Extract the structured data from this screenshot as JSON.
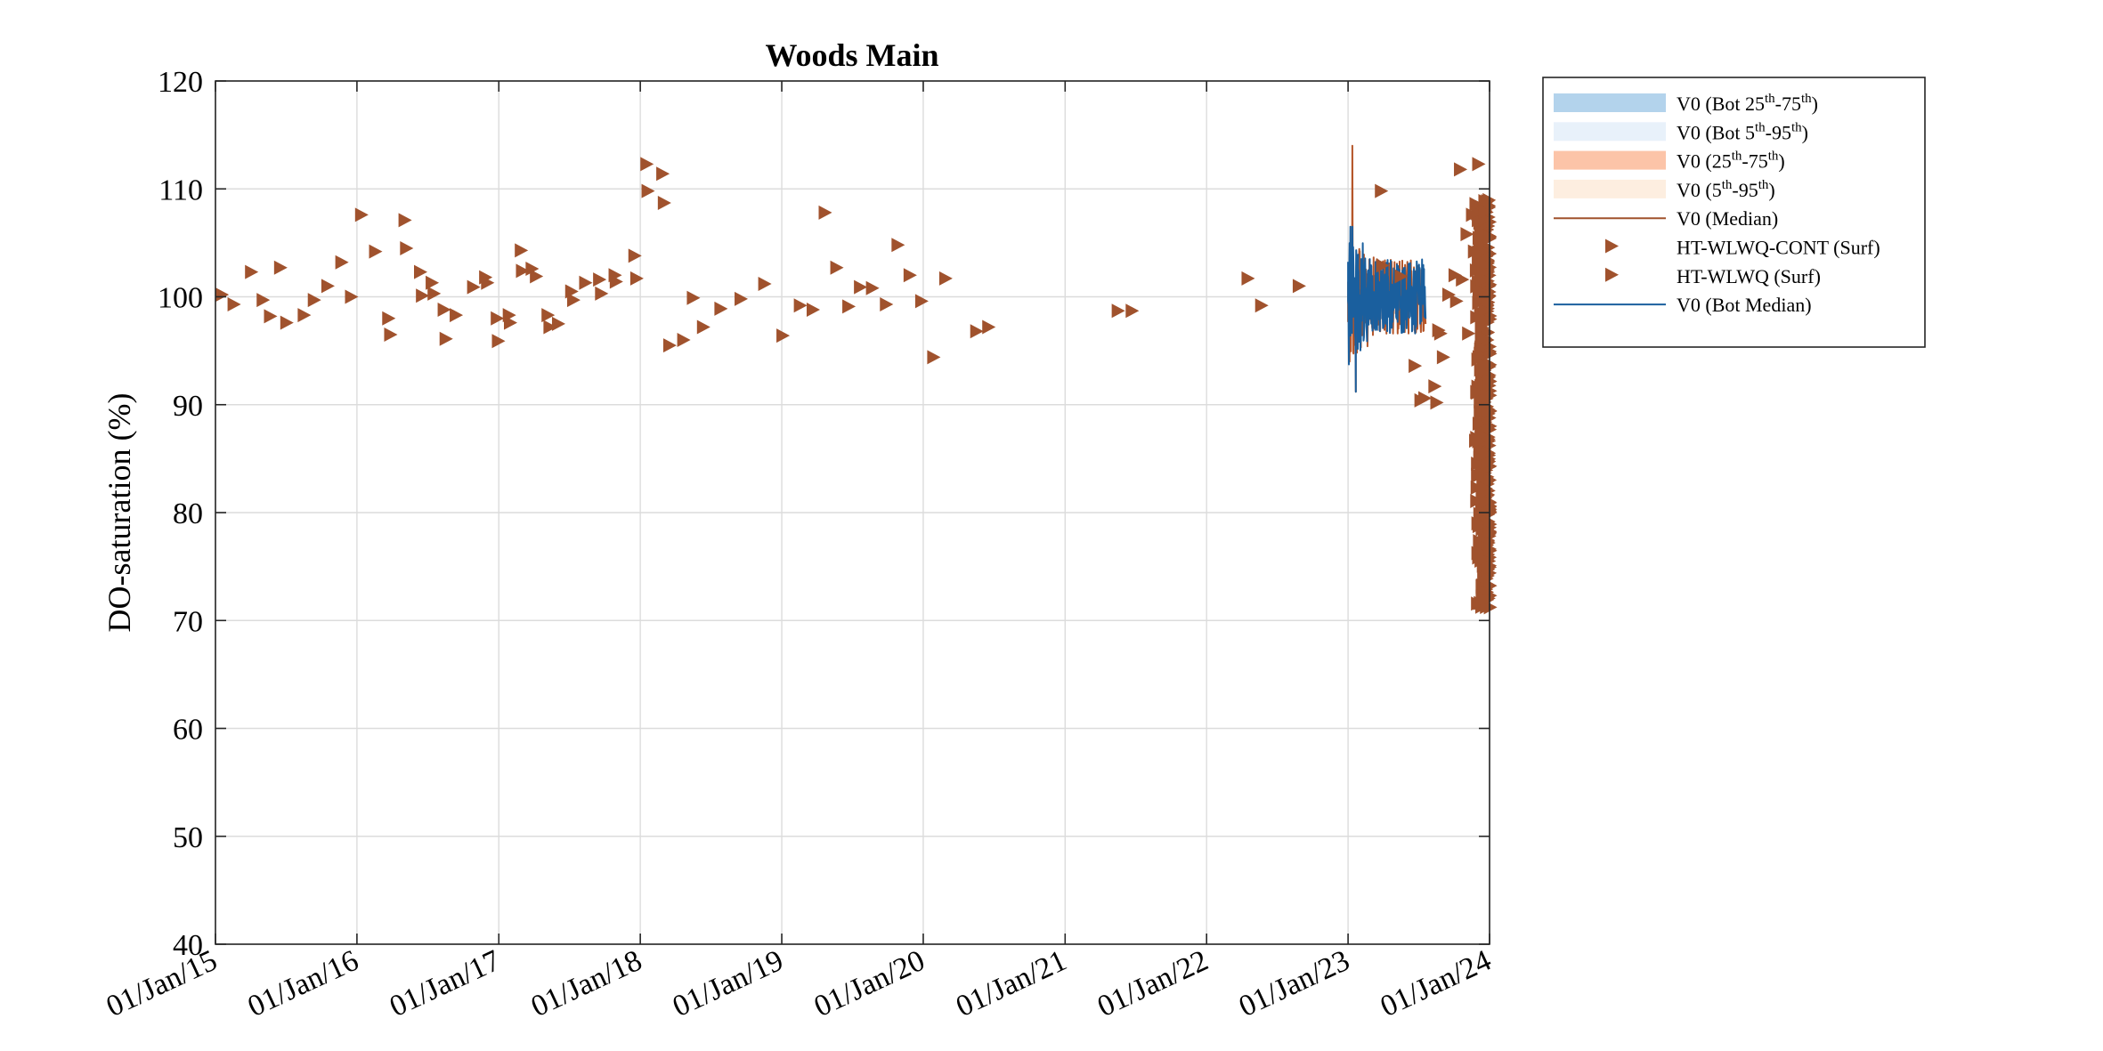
{
  "chart_data": {
    "type": "scatter",
    "title": "Woods Main",
    "ylabel": "DO-saturation (%)",
    "xlabel": "",
    "ylim": [
      40,
      120
    ],
    "yticks": [
      40,
      50,
      60,
      70,
      80,
      90,
      100,
      110,
      120
    ],
    "xlim": [
      "2015-01-01",
      "2024-01-01"
    ],
    "xticks": [
      {
        "date": "2015-01-01",
        "label": "01/Jan/15"
      },
      {
        "date": "2016-01-01",
        "label": "01/Jan/16"
      },
      {
        "date": "2017-01-01",
        "label": "01/Jan/17"
      },
      {
        "date": "2018-01-01",
        "label": "01/Jan/18"
      },
      {
        "date": "2019-01-01",
        "label": "01/Jan/19"
      },
      {
        "date": "2020-01-01",
        "label": "01/Jan/20"
      },
      {
        "date": "2021-01-01",
        "label": "01/Jan/21"
      },
      {
        "date": "2022-01-01",
        "label": "01/Jan/22"
      },
      {
        "date": "2023-01-01",
        "label": "01/Jan/23"
      },
      {
        "date": "2024-01-01",
        "label": "01/Jan/24"
      }
    ],
    "grid": true,
    "legend_position": "outside-right",
    "legend": [
      {
        "key": "bot_iqr",
        "kind": "patch",
        "color": "#b3d3ec",
        "base": "V0 (Bot 25",
        "sup1": "th",
        "mid": "-75",
        "sup2": "th",
        "tail": ")"
      },
      {
        "key": "bot_5_95",
        "kind": "patch",
        "color": "#e8f1fa",
        "base": "V0 (Bot 5",
        "sup1": "th",
        "mid": "-95",
        "sup2": "th",
        "tail": ")"
      },
      {
        "key": "iqr",
        "kind": "patch",
        "color": "#fcc4a8",
        "base": "V0 (25",
        "sup1": "th",
        "mid": "-75",
        "sup2": "th",
        "tail": ")"
      },
      {
        "key": "p5_95",
        "kind": "patch",
        "color": "#fdeee0",
        "base": "V0 (5",
        "sup1": "th",
        "mid": "-95",
        "sup2": "th",
        "tail": ")"
      },
      {
        "key": "median",
        "kind": "line",
        "color": "#a0522d",
        "base": "V0 (Median)"
      },
      {
        "key": "cont",
        "kind": "marker",
        "color": "#a0522d",
        "base": "HT-WLWQ-CONT (Surf)"
      },
      {
        "key": "grab",
        "kind": "marker",
        "color": "#a0522d",
        "base": "HT-WLWQ (Surf)"
      },
      {
        "key": "bot_median",
        "kind": "line",
        "color": "#1a5f9e",
        "base": "V0 (Bot Median)"
      }
    ],
    "colors": {
      "marker": "#a0522d",
      "surface_line": "#b5562a",
      "bottom_line": "#1a5f9e"
    },
    "series": [
      {
        "name": "HT-WLWQ (Surf)",
        "marker": "triangle-right",
        "points": [
          [
            "2015-01-15",
            100.2
          ],
          [
            "2015-02-15",
            99.3
          ],
          [
            "2015-04-01",
            102.3
          ],
          [
            "2015-05-01",
            99.7
          ],
          [
            "2015-05-20",
            98.2
          ],
          [
            "2015-06-15",
            102.7
          ],
          [
            "2015-07-01",
            97.6
          ],
          [
            "2015-08-15",
            98.3
          ],
          [
            "2015-09-10",
            99.7
          ],
          [
            "2015-10-15",
            101.0
          ],
          [
            "2015-11-20",
            103.2
          ],
          [
            "2015-12-15",
            100.0
          ],
          [
            "2016-01-10",
            107.6
          ],
          [
            "2016-02-15",
            104.2
          ],
          [
            "2016-03-20",
            98.0
          ],
          [
            "2016-03-25",
            96.5
          ],
          [
            "2016-05-01",
            107.1
          ],
          [
            "2016-05-05",
            104.5
          ],
          [
            "2016-06-10",
            102.3
          ],
          [
            "2016-06-15",
            100.1
          ],
          [
            "2016-07-10",
            101.3
          ],
          [
            "2016-07-15",
            100.3
          ],
          [
            "2016-08-10",
            98.8
          ],
          [
            "2016-08-15",
            96.1
          ],
          [
            "2016-09-10",
            98.3
          ],
          [
            "2016-10-25",
            100.9
          ],
          [
            "2016-11-25",
            101.8
          ],
          [
            "2016-11-30",
            101.3
          ],
          [
            "2016-12-25",
            98.0
          ],
          [
            "2016-12-28",
            95.9
          ],
          [
            "2017-01-25",
            98.3
          ],
          [
            "2017-01-28",
            97.6
          ],
          [
            "2017-02-25",
            104.3
          ],
          [
            "2017-02-28",
            102.4
          ],
          [
            "2017-03-25",
            102.6
          ],
          [
            "2017-04-05",
            101.9
          ],
          [
            "2017-05-05",
            98.3
          ],
          [
            "2017-05-10",
            97.2
          ],
          [
            "2017-06-01",
            97.5
          ],
          [
            "2017-07-05",
            100.5
          ],
          [
            "2017-07-10",
            99.7
          ],
          [
            "2017-08-10",
            101.3
          ],
          [
            "2017-09-15",
            101.6
          ],
          [
            "2017-09-20",
            100.3
          ],
          [
            "2017-10-25",
            102.0
          ],
          [
            "2017-10-28",
            101.4
          ],
          [
            "2017-12-15",
            103.8
          ],
          [
            "2017-12-20",
            101.7
          ],
          [
            "2018-01-15",
            112.3
          ],
          [
            "2018-01-18",
            109.8
          ],
          [
            "2018-02-25",
            111.4
          ],
          [
            "2018-03-01",
            108.7
          ],
          [
            "2018-03-15",
            95.5
          ],
          [
            "2018-04-20",
            96.0
          ],
          [
            "2018-05-15",
            99.9
          ],
          [
            "2018-06-10",
            97.2
          ],
          [
            "2018-07-25",
            98.9
          ],
          [
            "2018-09-15",
            99.8
          ],
          [
            "2018-11-15",
            101.2
          ],
          [
            "2019-01-01",
            96.4
          ],
          [
            "2019-02-15",
            99.2
          ],
          [
            "2019-03-20",
            98.8
          ],
          [
            "2019-04-20",
            107.8
          ],
          [
            "2019-05-20",
            102.7
          ],
          [
            "2019-06-20",
            99.1
          ],
          [
            "2019-07-20",
            100.9
          ],
          [
            "2019-08-20",
            100.8
          ],
          [
            "2019-09-25",
            99.3
          ],
          [
            "2019-10-25",
            104.8
          ],
          [
            "2019-11-25",
            102.0
          ],
          [
            "2019-12-25",
            99.6
          ],
          [
            "2020-01-25",
            94.4
          ],
          [
            "2020-02-25",
            101.7
          ],
          [
            "2020-05-15",
            96.8
          ],
          [
            "2020-06-15",
            97.2
          ],
          [
            "2021-05-15",
            98.7
          ],
          [
            "2021-06-20",
            98.7
          ],
          [
            "2022-04-15",
            101.7
          ],
          [
            "2022-05-20",
            99.2
          ],
          [
            "2022-08-25",
            101.0
          ],
          [
            "2023-03-25",
            109.8
          ],
          [
            "2023-03-28",
            102.9
          ],
          [
            "2023-05-15",
            101.9
          ],
          [
            "2023-06-20",
            93.6
          ],
          [
            "2023-07-05",
            90.4
          ],
          [
            "2023-07-15",
            90.6
          ],
          [
            "2023-08-10",
            91.7
          ],
          [
            "2023-08-15",
            90.2
          ],
          [
            "2023-09-01",
            94.4
          ],
          [
            "2023-09-15",
            100.2
          ],
          [
            "2023-10-01",
            102.0
          ],
          [
            "2023-10-05",
            99.6
          ],
          [
            "2023-10-15",
            111.8
          ],
          [
            "2023-10-20",
            101.6
          ],
          [
            "2023-11-01",
            105.8
          ],
          [
            "2023-11-05",
            96.6
          ],
          [
            "2023-11-15",
            107.6
          ],
          [
            "2023-11-20",
            104.2
          ],
          [
            "2023-12-01",
            112.3
          ],
          [
            "2023-08-20",
            96.9
          ],
          [
            "2023-08-25",
            96.6
          ]
        ]
      },
      {
        "name": "HT-WLWQ-CONT (Surf)",
        "marker": "triangle-right",
        "x_start": "2023-11-20",
        "x_end": "2024-01-01",
        "y_low": 71.2,
        "y_high": 109.0
      },
      {
        "name": "V0 (Median)",
        "kind": "line",
        "x_start": "2023-01-01",
        "x_end": "2023-07-20",
        "y_range": [
          91.2,
          114.0
        ]
      },
      {
        "name": "V0 (Bot Median)",
        "kind": "line",
        "x_start": "2023-01-01",
        "x_end": "2023-07-20",
        "y_range": [
          91.2,
          106.5
        ]
      }
    ]
  }
}
